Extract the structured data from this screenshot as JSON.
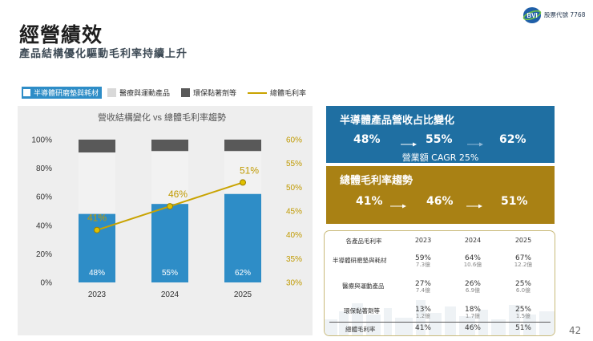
{
  "header": {
    "title": "經營績效",
    "subtitle": "產品結構優化驅動毛利率持續上升",
    "stock_label": "股票代號 7768"
  },
  "legend": [
    {
      "label": "半導體研磨墊與耗材",
      "color": "#2e8dc7"
    },
    {
      "label": "醫療與運動產品",
      "color": "#d9d9d9"
    },
    {
      "label": "環保黏著劑等",
      "color": "#595959"
    },
    {
      "label": "總體毛利率",
      "color": "#c9a300"
    }
  ],
  "chart_data": {
    "type": "bar",
    "title": "營收結構變化 vs 總體毛利率趨勢",
    "categories": [
      "2023",
      "2024",
      "2025"
    ],
    "series": [
      {
        "name": "半導體研磨墊與耗材",
        "values": [
          48,
          55,
          62
        ],
        "color": "#2e8dc7"
      },
      {
        "name": "醫療與運動產品",
        "values": [
          43,
          37,
          30
        ],
        "color": "#f2f2f2"
      },
      {
        "name": "環保黏著劑等",
        "values": [
          9,
          8,
          8
        ],
        "color": "#595959"
      }
    ],
    "line_series": {
      "name": "總體毛利率",
      "values": [
        41,
        46,
        51
      ],
      "color": "#c9a300",
      "axis": "right"
    },
    "bar_labels": [
      "48%",
      "55%",
      "62%"
    ],
    "line_labels": [
      "41%",
      "46%",
      "51%"
    ],
    "left_axis": {
      "min": 0,
      "max": 100,
      "ticks": [
        "0%",
        "20%",
        "40%",
        "60%",
        "80%",
        "100%"
      ]
    },
    "right_axis": {
      "min": 30,
      "max": 60,
      "ticks": [
        "30%",
        "35%",
        "40%",
        "45%",
        "50%",
        "55%",
        "60%"
      ]
    }
  },
  "share_box": {
    "title": "半導體產品營收占比變化",
    "values": [
      "48%",
      "55%",
      "62%"
    ],
    "note": "營業額 CAGR 25%",
    "color": "#1f6fa2"
  },
  "margin_box": {
    "title": "總體毛利率趨勢",
    "values": [
      "41%",
      "46%",
      "51%"
    ],
    "color": "#a98114"
  },
  "margin_table": {
    "header": [
      "各產品毛利率",
      "2023",
      "2024",
      "2025"
    ],
    "rows": [
      {
        "label": "半導體研磨墊與耗材",
        "cells": [
          {
            "pct": "59%",
            "amt": "7.3億"
          },
          {
            "pct": "64%",
            "amt": "10.6億"
          },
          {
            "pct": "67%",
            "amt": "12.2億"
          }
        ]
      },
      {
        "label": "醫療與運動產品",
        "cells": [
          {
            "pct": "27%",
            "amt": "7.4億"
          },
          {
            "pct": "26%",
            "amt": "6.9億"
          },
          {
            "pct": "25%",
            "amt": "6.0億"
          }
        ]
      },
      {
        "label": "環保黏著劑等",
        "cells": [
          {
            "pct": "13%",
            "amt": "1.2億"
          },
          {
            "pct": "18%",
            "amt": "1.7億"
          },
          {
            "pct": "25%",
            "amt": "1.5億"
          }
        ]
      }
    ],
    "total": {
      "label": "總體毛利率",
      "cells": [
        "41%",
        "46%",
        "51%"
      ]
    }
  },
  "page_number": "42"
}
